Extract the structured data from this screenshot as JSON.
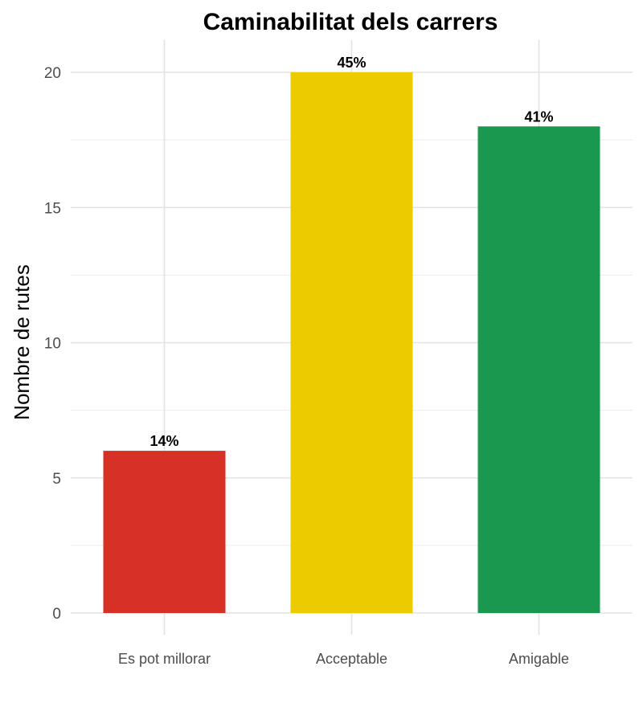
{
  "chart_data": {
    "type": "bar",
    "title": "Caminabilitat dels carrers",
    "xlabel": "",
    "ylabel": "Nombre de rutes",
    "categories": [
      "Es pot millorar",
      "Acceptable",
      "Amigable"
    ],
    "values": [
      6,
      20,
      18
    ],
    "data_labels": [
      "14%",
      "45%",
      "41%"
    ],
    "colors": [
      "#d73027",
      "#eccb00",
      "#1a9850"
    ],
    "ylim": [
      0,
      21.2
    ],
    "yticks": [
      0,
      5,
      10,
      15,
      20
    ],
    "grid": true,
    "legend": "none"
  }
}
